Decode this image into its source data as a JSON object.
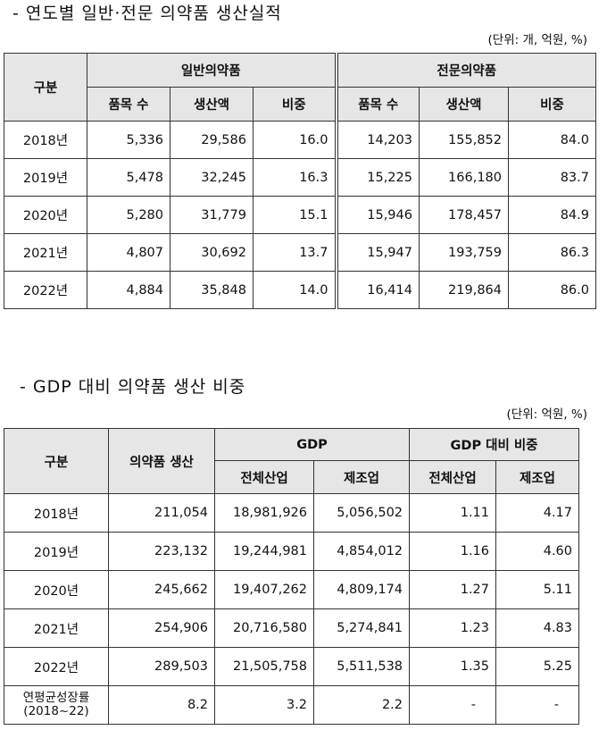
{
  "section1": {
    "title": "- 연도별 일반·전문 의약품 생산실적",
    "unit": "(단위: 개, 억원, %)",
    "headers": {
      "category": "구분",
      "general_group": "일반의약품",
      "specialty_group": "전문의약품",
      "items": "품목 수",
      "production": "생산액",
      "share": "비중"
    },
    "rows": [
      {
        "year": "2018년",
        "g_items": "5,336",
        "g_prod": "29,586",
        "g_share": "16.0",
        "s_items": "14,203",
        "s_prod": "155,852",
        "s_share": "84.0"
      },
      {
        "year": "2019년",
        "g_items": "5,478",
        "g_prod": "32,245",
        "g_share": "16.3",
        "s_items": "15,225",
        "s_prod": "166,180",
        "s_share": "83.7"
      },
      {
        "year": "2020년",
        "g_items": "5,280",
        "g_prod": "31,779",
        "g_share": "15.1",
        "s_items": "15,946",
        "s_prod": "178,457",
        "s_share": "84.9"
      },
      {
        "year": "2021년",
        "g_items": "4,807",
        "g_prod": "30,692",
        "g_share": "13.7",
        "s_items": "15,947",
        "s_prod": "193,759",
        "s_share": "86.3"
      },
      {
        "year": "2022년",
        "g_items": "4,884",
        "g_prod": "35,848",
        "g_share": "14.0",
        "s_items": "16,414",
        "s_prod": "219,864",
        "s_share": "86.0"
      }
    ]
  },
  "section2": {
    "title": "- GDP 대비 의약품 생산 비중",
    "unit": "(단위: 억원, %)",
    "headers": {
      "category": "구분",
      "pharma_production": "의약품 생산",
      "gdp_group": "GDP",
      "ratio_group": "GDP 대비 비중",
      "all_industry": "전체산업",
      "manufacturing": "제조업"
    },
    "rows": [
      {
        "year": "2018년",
        "pharma": "211,054",
        "gdp_all": "18,981,926",
        "gdp_mfg": "5,056,502",
        "ratio_all": "1.11",
        "ratio_mfg": "4.17"
      },
      {
        "year": "2019년",
        "pharma": "223,132",
        "gdp_all": "19,244,981",
        "gdp_mfg": "4,854,012",
        "ratio_all": "1.16",
        "ratio_mfg": "4.60"
      },
      {
        "year": "2020년",
        "pharma": "245,662",
        "gdp_all": "19,407,262",
        "gdp_mfg": "4,809,174",
        "ratio_all": "1.27",
        "ratio_mfg": "5.11"
      },
      {
        "year": "2021년",
        "pharma": "254,906",
        "gdp_all": "20,716,580",
        "gdp_mfg": "5,274,841",
        "ratio_all": "1.23",
        "ratio_mfg": "4.83"
      },
      {
        "year": "2022년",
        "pharma": "289,503",
        "gdp_all": "21,505,758",
        "gdp_mfg": "5,511,538",
        "ratio_all": "1.35",
        "ratio_mfg": "5.25"
      }
    ],
    "cagr_row": {
      "label_line1": "연평균성장률",
      "label_line2": "(2018~22)",
      "pharma": "8.2",
      "gdp_all": "3.2",
      "gdp_mfg": "2.2",
      "ratio_all": "-",
      "ratio_mfg": "-"
    }
  }
}
